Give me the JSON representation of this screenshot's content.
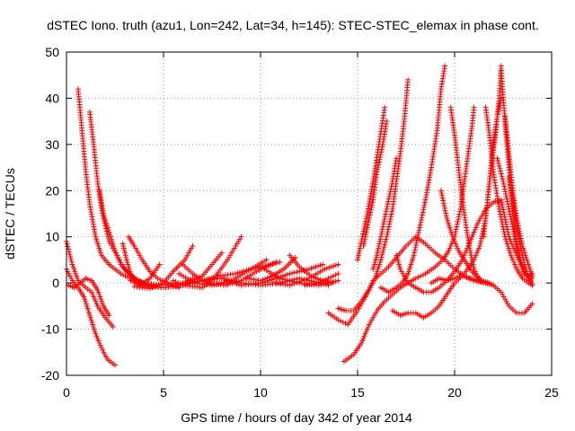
{
  "chart_data": {
    "type": "scatter",
    "title": "dSTEC Iono. truth (azu1, Lon=242, Lat=34, h=145): STEC-STEC_elemax in phase cont.",
    "xlabel": "GPS time / hours of day 342 of year 2014",
    "ylabel": "dSTEC  / TECUs",
    "xlim": [
      0,
      25
    ],
    "ylim": [
      -20,
      50
    ],
    "xticks": [
      0,
      5,
      10,
      15,
      20,
      25
    ],
    "yticks": [
      -20,
      -10,
      0,
      10,
      20,
      30,
      40,
      50
    ],
    "grid": true,
    "legend": "none",
    "marker": "plus",
    "color": "#ff0000",
    "tracks": [
      [
        [
          0.0,
          9.0
        ],
        [
          0.3,
          4.0
        ],
        [
          0.6,
          0.5
        ],
        [
          1.0,
          -1.0
        ],
        [
          1.3,
          -2.0
        ],
        [
          1.6,
          -5.0
        ],
        [
          2.0,
          -7.5
        ],
        [
          2.4,
          -9.5
        ]
      ],
      [
        [
          0.0,
          3.0
        ],
        [
          0.3,
          0.5
        ],
        [
          0.6,
          -1.0
        ],
        [
          0.9,
          -3.0
        ],
        [
          1.2,
          -7.0
        ],
        [
          1.5,
          -11.0
        ],
        [
          1.8,
          -14.0
        ],
        [
          2.1,
          -16.5
        ],
        [
          2.5,
          -17.8
        ]
      ],
      [
        [
          0.1,
          -0.5
        ],
        [
          0.4,
          -1.0
        ],
        [
          0.7,
          0.0
        ],
        [
          1.0,
          1.0
        ],
        [
          1.3,
          0.5
        ],
        [
          1.6,
          -1.5
        ],
        [
          1.9,
          -5.0
        ],
        [
          2.2,
          -7.0
        ]
      ],
      [
        [
          0.6,
          42.0
        ],
        [
          0.8,
          33.0
        ],
        [
          1.0,
          24.0
        ],
        [
          1.2,
          17.0
        ],
        [
          1.5,
          10.0
        ],
        [
          1.8,
          6.0
        ],
        [
          2.2,
          4.0
        ],
        [
          2.8,
          2.0
        ],
        [
          3.5,
          0.5
        ],
        [
          4.2,
          -0.5
        ],
        [
          5.0,
          -1.0
        ],
        [
          6.0,
          -0.5
        ],
        [
          7.0,
          0.5
        ],
        [
          8.0,
          1.0
        ],
        [
          9.0,
          0.0
        ],
        [
          10.0,
          -0.5
        ],
        [
          11.0,
          0.0
        ],
        [
          12.0,
          1.0
        ],
        [
          13.0,
          0.0
        ],
        [
          13.5,
          -0.5
        ]
      ],
      [
        [
          1.2,
          37.0
        ],
        [
          1.4,
          30.0
        ],
        [
          1.6,
          22.0
        ],
        [
          1.9,
          14.0
        ],
        [
          2.2,
          9.0
        ],
        [
          2.6,
          6.0
        ],
        [
          3.0,
          3.0
        ],
        [
          3.5,
          1.0
        ],
        [
          4.0,
          0.0
        ],
        [
          5.0,
          -0.5
        ],
        [
          6.0,
          0.0
        ],
        [
          6.5,
          1.0
        ]
      ],
      [
        [
          1.7,
          20.0
        ],
        [
          1.9,
          15.0
        ],
        [
          2.2,
          11.0
        ],
        [
          2.5,
          7.0
        ],
        [
          2.8,
          4.0
        ],
        [
          3.2,
          2.0
        ],
        [
          3.7,
          0.5
        ],
        [
          4.2,
          -0.5
        ]
      ],
      [
        [
          3.2,
          10.0
        ],
        [
          3.5,
          8.0
        ],
        [
          3.9,
          5.0
        ],
        [
          4.3,
          2.5
        ],
        [
          4.7,
          1.0
        ],
        [
          5.2,
          0.0
        ],
        [
          5.8,
          -1.0
        ]
      ],
      [
        [
          2.9,
          8.5
        ],
        [
          3.1,
          5.0
        ],
        [
          3.3,
          2.0
        ],
        [
          3.6,
          0.5
        ],
        [
          4.0,
          0.0
        ]
      ],
      [
        [
          3.3,
          0.5
        ],
        [
          3.8,
          -0.5
        ],
        [
          4.3,
          1.0
        ],
        [
          4.8,
          4.0
        ]
      ],
      [
        [
          3.5,
          -0.8
        ],
        [
          4.3,
          -1.2
        ],
        [
          5.0,
          0.0
        ],
        [
          5.5,
          2.5
        ],
        [
          6.1,
          5.0
        ],
        [
          6.5,
          8.0
        ]
      ],
      [
        [
          3.8,
          -0.6
        ],
        [
          5.0,
          -1.0
        ],
        [
          6.0,
          -0.5
        ],
        [
          7.0,
          1.5
        ],
        [
          7.5,
          4.0
        ],
        [
          8.0,
          6.5
        ]
      ],
      [
        [
          5.5,
          0.5
        ],
        [
          6.0,
          -0.5
        ],
        [
          7.0,
          -1.0
        ],
        [
          7.6,
          1.0
        ],
        [
          8.3,
          5.0
        ],
        [
          9.0,
          10.0
        ]
      ],
      [
        [
          5.8,
          2.0
        ],
        [
          6.6,
          0.0
        ],
        [
          7.5,
          -0.5
        ],
        [
          8.5,
          0.5
        ],
        [
          9.5,
          3.0
        ],
        [
          10.3,
          5.0
        ]
      ],
      [
        [
          6.2,
          0.0
        ],
        [
          7.0,
          0.5
        ],
        [
          7.8,
          1.5
        ],
        [
          8.7,
          2.0
        ],
        [
          9.5,
          3.0
        ],
        [
          10.5,
          4.0
        ],
        [
          11.0,
          4.5
        ]
      ],
      [
        [
          6.0,
          4.0
        ],
        [
          6.5,
          2.0
        ],
        [
          7.2,
          0.0
        ],
        [
          8.2,
          -0.5
        ],
        [
          9.0,
          0.5
        ],
        [
          9.8,
          2.5
        ],
        [
          10.8,
          4.5
        ]
      ],
      [
        [
          8.2,
          0.5
        ],
        [
          9.0,
          -0.5
        ],
        [
          10.0,
          0.0
        ],
        [
          10.8,
          1.0
        ],
        [
          11.5,
          2.0
        ],
        [
          12.5,
          3.0
        ],
        [
          13.2,
          4.0
        ]
      ],
      [
        [
          9.3,
          1.0
        ],
        [
          10.0,
          0.5
        ],
        [
          10.6,
          1.5
        ],
        [
          11.2,
          3.0
        ],
        [
          11.8,
          5.5
        ]
      ],
      [
        [
          10.2,
          3.0
        ],
        [
          11.0,
          1.0
        ],
        [
          12.0,
          0.0
        ],
        [
          13.0,
          -0.5
        ],
        [
          14.0,
          0.5
        ]
      ],
      [
        [
          10.8,
          0.0
        ],
        [
          11.5,
          -0.5
        ],
        [
          12.5,
          1.0
        ],
        [
          13.3,
          3.0
        ],
        [
          14.0,
          4.0
        ]
      ],
      [
        [
          11.5,
          6.0
        ],
        [
          12.0,
          3.5
        ],
        [
          12.6,
          1.5
        ],
        [
          13.2,
          0.5
        ],
        [
          13.7,
          0.0
        ]
      ],
      [
        [
          12.3,
          -0.5
        ],
        [
          13.0,
          0.0
        ],
        [
          13.5,
          1.0
        ],
        [
          14.0,
          2.0
        ]
      ],
      [
        [
          13.5,
          -6.5
        ],
        [
          14.0,
          -8.0
        ],
        [
          14.5,
          -9.0
        ],
        [
          15.0,
          -6.0
        ],
        [
          15.4,
          -3.0
        ],
        [
          15.8,
          0.5
        ],
        [
          16.2,
          2.0
        ],
        [
          16.6,
          3.5
        ],
        [
          17.0,
          5.5
        ],
        [
          17.5,
          8.0
        ],
        [
          18.0,
          10.0
        ],
        [
          18.5,
          8.5
        ],
        [
          19.0,
          6.5
        ],
        [
          19.5,
          5.0
        ],
        [
          20.0,
          3.0
        ],
        [
          20.5,
          1.5
        ],
        [
          21.0,
          0.5
        ],
        [
          21.6,
          0.0
        ],
        [
          22.0,
          -0.5
        ]
      ],
      [
        [
          14.0,
          -5.5
        ],
        [
          14.4,
          -6.0
        ],
        [
          14.8,
          -6.0
        ],
        [
          15.2,
          -4.0
        ],
        [
          15.6,
          -1.5
        ],
        [
          15.9,
          1.0
        ],
        [
          16.2,
          5.0
        ],
        [
          16.5,
          10.0
        ],
        [
          16.8,
          16.0
        ],
        [
          17.0,
          22.0
        ],
        [
          17.2,
          28.0
        ],
        [
          17.4,
          35.0
        ],
        [
          17.6,
          44.0
        ]
      ],
      [
        [
          14.3,
          -17.0
        ],
        [
          14.8,
          -15.5
        ],
        [
          15.2,
          -13.0
        ],
        [
          15.6,
          -9.0
        ],
        [
          16.0,
          -6.0
        ],
        [
          16.4,
          -4.0
        ],
        [
          16.8,
          -2.5
        ],
        [
          17.2,
          -1.0
        ],
        [
          17.6,
          0.0
        ],
        [
          18.0,
          1.0
        ],
        [
          18.5,
          2.0
        ],
        [
          19.0,
          3.5
        ],
        [
          19.4,
          5.0
        ],
        [
          19.7,
          7.0
        ],
        [
          20.0,
          10.0
        ],
        [
          20.3,
          16.0
        ],
        [
          20.5,
          22.0
        ],
        [
          20.7,
          28.0
        ],
        [
          20.9,
          34.0
        ],
        [
          21.0,
          38.0
        ]
      ],
      [
        [
          15.0,
          5.0
        ],
        [
          15.2,
          9.0
        ],
        [
          15.5,
          15.0
        ],
        [
          15.8,
          22.0
        ],
        [
          16.1,
          30.0
        ],
        [
          16.4,
          38.0
        ]
      ],
      [
        [
          15.3,
          8.0
        ],
        [
          15.5,
          12.0
        ],
        [
          15.8,
          18.0
        ],
        [
          16.0,
          24.0
        ],
        [
          16.3,
          30.0
        ],
        [
          16.5,
          35.0
        ]
      ],
      [
        [
          15.8,
          3.0
        ],
        [
          16.0,
          6.0
        ],
        [
          16.2,
          10.0
        ],
        [
          16.5,
          16.0
        ],
        [
          16.8,
          22.0
        ],
        [
          17.0,
          27.0
        ]
      ],
      [
        [
          16.2,
          -1.0
        ],
        [
          16.6,
          -2.0
        ],
        [
          17.0,
          -1.0
        ],
        [
          17.3,
          0.0
        ],
        [
          17.6,
          2.0
        ],
        [
          17.9,
          6.0
        ],
        [
          18.2,
          12.0
        ],
        [
          18.5,
          18.0
        ],
        [
          18.8,
          25.0
        ],
        [
          19.1,
          33.0
        ],
        [
          19.3,
          42.0
        ],
        [
          19.5,
          47.0
        ]
      ],
      [
        [
          17.0,
          6.0
        ],
        [
          17.2,
          3.0
        ],
        [
          17.6,
          0.0
        ],
        [
          18.0,
          -1.0
        ],
        [
          18.4,
          -2.0
        ],
        [
          18.8,
          -2.0
        ],
        [
          19.2,
          -1.0
        ],
        [
          19.6,
          0.5
        ],
        [
          20.0,
          2.5
        ],
        [
          20.4,
          5.0
        ],
        [
          20.8,
          9.0
        ],
        [
          21.2,
          13.0
        ],
        [
          21.6,
          16.0
        ],
        [
          22.0,
          17.5
        ],
        [
          22.4,
          18.0
        ],
        [
          22.8,
          10.0
        ],
        [
          23.2,
          6.0
        ],
        [
          23.6,
          2.0
        ],
        [
          24.0,
          1.0
        ]
      ],
      [
        [
          16.8,
          -6.0
        ],
        [
          17.2,
          -7.0
        ],
        [
          17.6,
          -6.5
        ],
        [
          18.0,
          -6.5
        ],
        [
          18.4,
          -7.5
        ],
        [
          18.8,
          -6.5
        ],
        [
          19.2,
          -5.0
        ],
        [
          19.6,
          -2.5
        ],
        [
          20.0,
          0.0
        ],
        [
          20.4,
          1.5
        ],
        [
          20.8,
          1.0
        ],
        [
          21.2,
          0.5
        ],
        [
          21.6,
          0.0
        ],
        [
          22.0,
          -0.5
        ],
        [
          22.4,
          -2.0
        ],
        [
          22.8,
          -5.0
        ],
        [
          23.2,
          -6.5
        ],
        [
          23.6,
          -6.5
        ],
        [
          24.0,
          -4.5
        ]
      ],
      [
        [
          18.8,
          0.0
        ],
        [
          19.2,
          1.0
        ],
        [
          19.6,
          0.5
        ],
        [
          20.0,
          1.0
        ],
        [
          20.5,
          2.0
        ],
        [
          21.0,
          5.0
        ],
        [
          21.3,
          8.0
        ],
        [
          21.6,
          14.0
        ],
        [
          21.8,
          22.0
        ],
        [
          22.0,
          30.0
        ],
        [
          22.2,
          36.0
        ],
        [
          22.4,
          40.0
        ]
      ],
      [
        [
          19.3,
          20.0
        ],
        [
          19.6,
          14.0
        ],
        [
          19.9,
          10.0
        ],
        [
          20.2,
          7.0
        ],
        [
          20.5,
          5.0
        ],
        [
          20.8,
          3.0
        ],
        [
          21.1,
          1.5
        ],
        [
          21.4,
          0.5
        ],
        [
          21.8,
          0.0
        ]
      ],
      [
        [
          19.8,
          38.0
        ],
        [
          20.0,
          32.0
        ],
        [
          20.2,
          25.0
        ],
        [
          20.4,
          18.0
        ],
        [
          20.6,
          12.0
        ],
        [
          20.8,
          7.0
        ],
        [
          21.0,
          3.0
        ],
        [
          21.3,
          0.5
        ],
        [
          21.6,
          0.0
        ]
      ],
      [
        [
          21.5,
          10.0
        ],
        [
          21.7,
          18.0
        ],
        [
          21.9,
          26.0
        ],
        [
          22.1,
          32.0
        ],
        [
          22.3,
          40.0
        ],
        [
          22.4,
          47.0
        ]
      ],
      [
        [
          22.4,
          46.0
        ],
        [
          22.6,
          35.0
        ],
        [
          22.8,
          25.0
        ],
        [
          23.0,
          15.0
        ],
        [
          23.2,
          8.0
        ],
        [
          23.4,
          4.0
        ],
        [
          23.6,
          2.0
        ],
        [
          23.8,
          1.5
        ],
        [
          24.0,
          2.0
        ]
      ],
      [
        [
          21.6,
          38.0
        ],
        [
          21.8,
          32.0
        ],
        [
          22.0,
          24.0
        ],
        [
          22.3,
          16.0
        ],
        [
          22.6,
          10.0
        ],
        [
          22.9,
          6.0
        ],
        [
          23.2,
          3.0
        ],
        [
          23.5,
          1.0
        ],
        [
          23.8,
          0.0
        ],
        [
          24.0,
          -0.5
        ]
      ],
      [
        [
          22.6,
          36.0
        ],
        [
          22.8,
          28.0
        ],
        [
          23.0,
          20.0
        ],
        [
          23.2,
          14.0
        ],
        [
          23.5,
          8.0
        ],
        [
          23.8,
          4.0
        ],
        [
          24.0,
          1.5
        ]
      ],
      [
        [
          22.2,
          27.0
        ],
        [
          22.5,
          22.0
        ],
        [
          22.8,
          16.0
        ],
        [
          23.1,
          10.0
        ],
        [
          23.4,
          5.0
        ],
        [
          23.7,
          2.0
        ],
        [
          24.0,
          0.0
        ]
      ],
      [
        [
          22.8,
          23.0
        ],
        [
          23.0,
          18.0
        ],
        [
          23.2,
          12.0
        ],
        [
          23.4,
          8.0
        ],
        [
          23.6,
          4.0
        ],
        [
          23.8,
          1.0
        ],
        [
          24.0,
          -0.5
        ]
      ]
    ]
  }
}
